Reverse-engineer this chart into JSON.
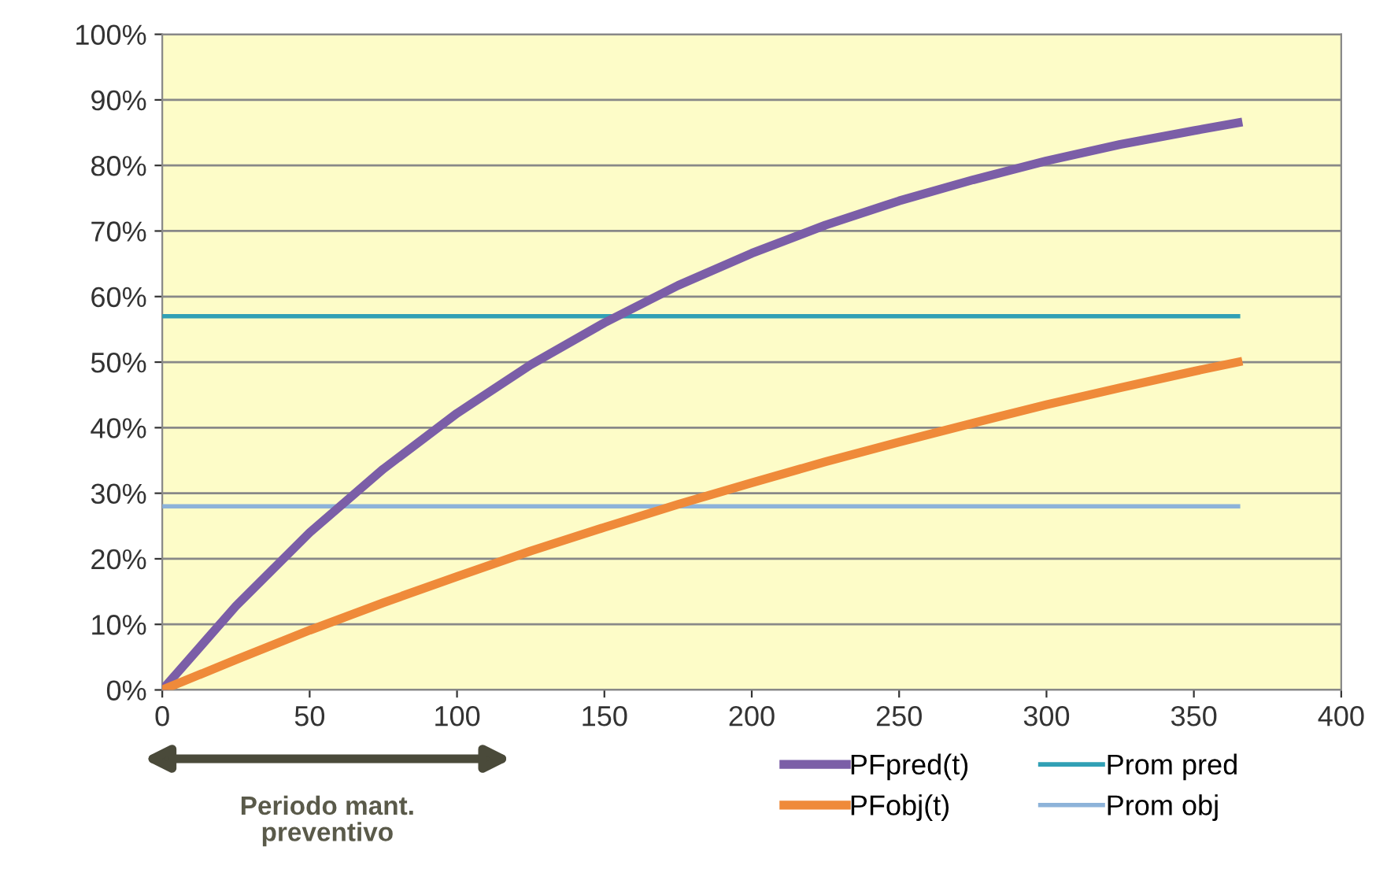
{
  "chart_data": {
    "type": "line",
    "x": [
      0,
      25,
      50,
      75,
      100,
      125,
      150,
      175,
      200,
      225,
      250,
      275,
      300,
      325,
      350,
      365
    ],
    "series": [
      {
        "name": "PFpred(t)",
        "color": "#7b5ea7",
        "values": [
          0,
          12.8,
          24.0,
          33.7,
          42.2,
          49.6,
          56.0,
          61.7,
          66.6,
          70.9,
          74.6,
          77.8,
          80.7,
          83.2,
          85.3,
          86.5
        ]
      },
      {
        "name": "PFobj(t)",
        "color": "#ef8a3a",
        "values": [
          0,
          4.6,
          9.1,
          13.3,
          17.3,
          21.2,
          24.8,
          28.3,
          31.6,
          34.8,
          37.8,
          40.7,
          43.5,
          46.1,
          48.6,
          50.0
        ]
      },
      {
        "name": "Prom pred",
        "color": "#31a0b5",
        "values": [
          57,
          57,
          57,
          57,
          57,
          57,
          57,
          57,
          57,
          57,
          57,
          57,
          57,
          57,
          57,
          57
        ]
      },
      {
        "name": "Prom obj",
        "color": "#8db3d9",
        "values": [
          28,
          28,
          28,
          28,
          28,
          28,
          28,
          28,
          28,
          28,
          28,
          28,
          28,
          28,
          28,
          28
        ]
      }
    ],
    "xlim": [
      0,
      400
    ],
    "xticks": [
      0,
      50,
      100,
      150,
      200,
      250,
      300,
      350,
      400
    ],
    "ylim": [
      0,
      100
    ],
    "yticks": [
      {
        "value": 0,
        "label": "0%"
      },
      {
        "value": 10,
        "label": "10%"
      },
      {
        "value": 20,
        "label": "20%"
      },
      {
        "value": 30,
        "label": "30%"
      },
      {
        "value": 40,
        "label": "40%"
      },
      {
        "value": 50,
        "label": "50%"
      },
      {
        "value": 60,
        "label": "60%"
      },
      {
        "value": 70,
        "label": "70%"
      },
      {
        "value": 80,
        "label": "80%"
      },
      {
        "value": 90,
        "label": "90%"
      },
      {
        "value": 100,
        "label": "100%"
      }
    ],
    "grid": "y",
    "legend": "bottom",
    "marker": "none",
    "line_style": "solid",
    "annotations": [
      "Periodo mant.\npreventivo"
    ]
  }
}
